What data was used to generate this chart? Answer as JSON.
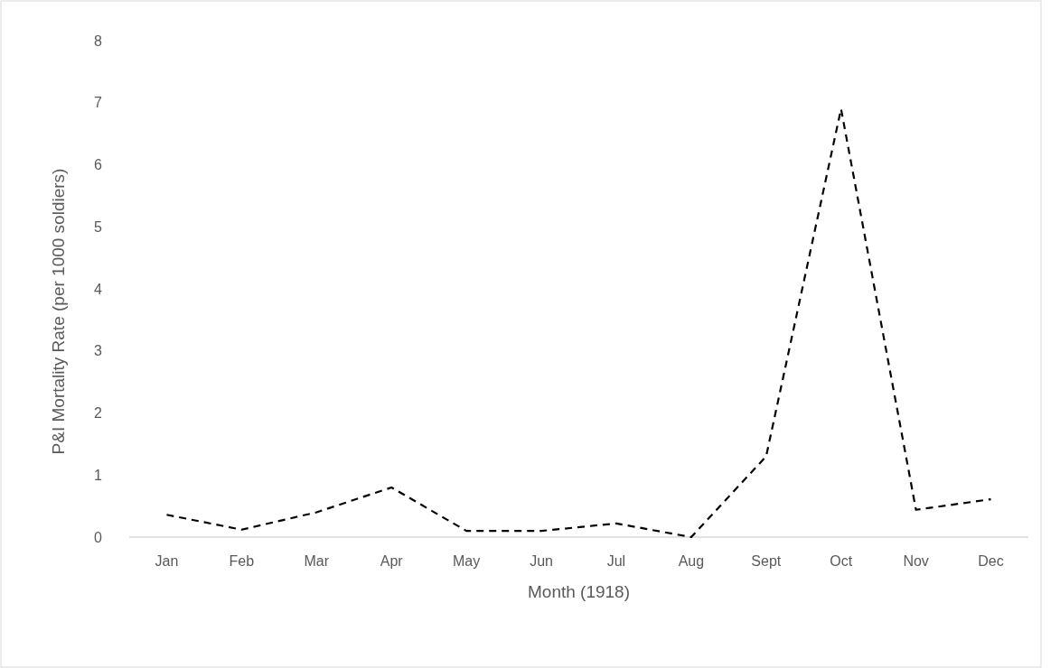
{
  "chart_data": {
    "type": "line",
    "xlabel": "Month (1918)",
    "ylabel": "P&I Mortality Rate (per 1000 soldiers)",
    "categories": [
      "Jan",
      "Feb",
      "Mar",
      "Apr",
      "May",
      "Jun",
      "Jul",
      "Aug",
      "Sept",
      "Oct",
      "Nov",
      "Dec"
    ],
    "series": [
      {
        "color": "#000000",
        "values": [
          0.36,
          0.12,
          0.4,
          0.8,
          0.1,
          0.1,
          0.22,
          0,
          1.3,
          6.9,
          0.44,
          0.61
        ]
      }
    ],
    "ylim": [
      0,
      8
    ],
    "yticks": [
      0,
      1,
      2,
      3,
      4,
      5,
      6,
      7,
      8
    ],
    "grid": false,
    "marker": "none",
    "line_style": "dashed"
  }
}
